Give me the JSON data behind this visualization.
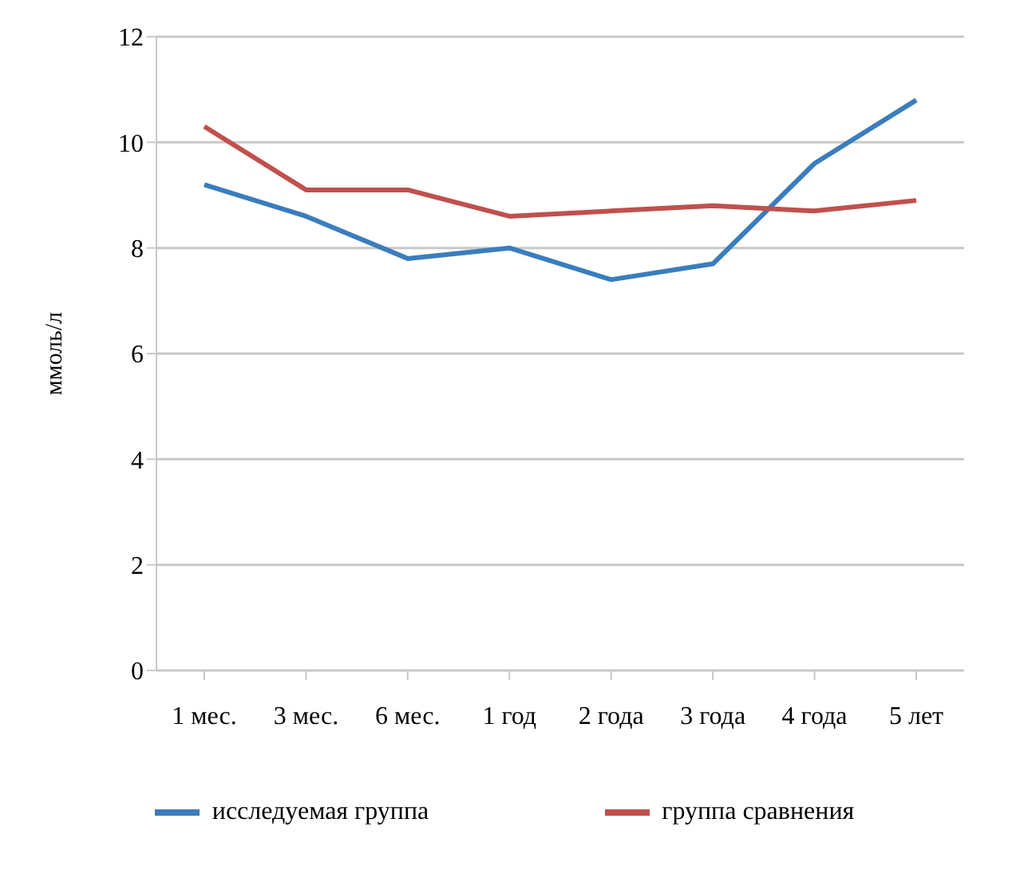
{
  "chart_data": {
    "type": "line",
    "ylabel": "ммоль/л",
    "categories": [
      "1 мес.",
      "3 мес.",
      "6 мес.",
      "1 год",
      "2 года",
      "3 года",
      "4 года",
      "5 лет"
    ],
    "series": [
      {
        "name": "исследуемая группа",
        "color": "#3a7dbd",
        "values": [
          9.2,
          8.6,
          7.8,
          8.0,
          7.4,
          7.7,
          9.6,
          10.8
        ]
      },
      {
        "name": "группа сравнения",
        "color": "#c0504d",
        "values": [
          10.3,
          9.1,
          9.1,
          8.6,
          8.7,
          8.8,
          8.7,
          8.9
        ]
      }
    ],
    "ylim": [
      0,
      12
    ],
    "yticks": [
      0,
      2,
      4,
      6,
      8,
      10,
      12
    ],
    "grid": "y",
    "legend": "bottom",
    "marker": "none",
    "line_style": "solid"
  }
}
